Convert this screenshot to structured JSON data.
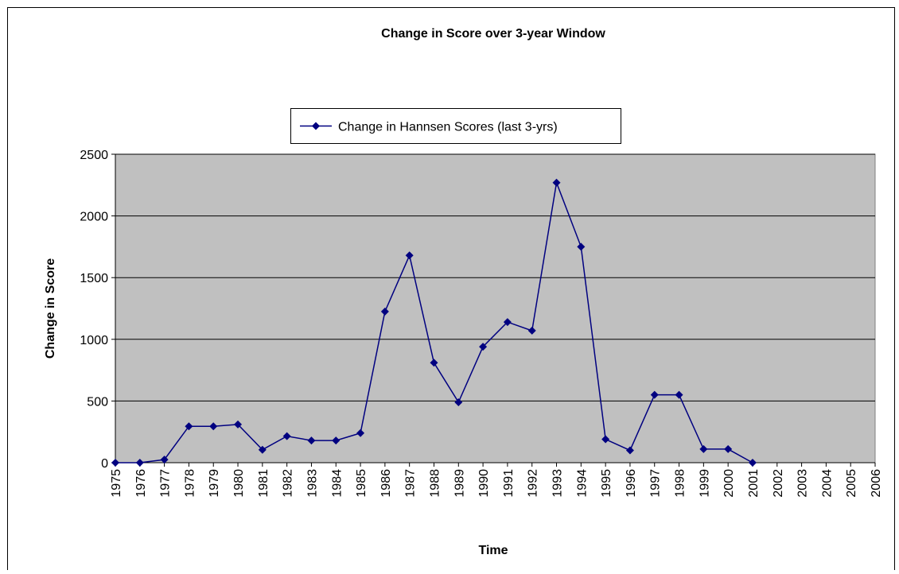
{
  "chart_data": {
    "type": "line",
    "title": "Change in Score over 3-year Window",
    "x_label": "Time",
    "y_label": "Change in Score",
    "categories": [
      "1975",
      "1976",
      "1977",
      "1978",
      "1979",
      "1980",
      "1981",
      "1982",
      "1983",
      "1984",
      "1985",
      "1986",
      "1987",
      "1988",
      "1989",
      "1990",
      "1991",
      "1992",
      "1993",
      "1994",
      "1995",
      "1996",
      "1997",
      "1998",
      "1999",
      "2000",
      "2001",
      "2002",
      "2003",
      "2004",
      "2005",
      "2006"
    ],
    "series": [
      {
        "name": "Change in Hannsen Scores (last 3-yrs)",
        "color": "#000080",
        "values": [
          0,
          0,
          25,
          295,
          295,
          310,
          105,
          215,
          180,
          180,
          240,
          1225,
          1680,
          810,
          490,
          940,
          1140,
          1070,
          2270,
          1750,
          190,
          100,
          550,
          550,
          110,
          110,
          0,
          null,
          null,
          null,
          null,
          null
        ]
      }
    ],
    "ylim": [
      0,
      2500
    ],
    "yticks": [
      0,
      500,
      1000,
      1500,
      2000,
      2500
    ],
    "grid": true,
    "plot_background": "#c0c0c0",
    "legend_position": "top"
  }
}
